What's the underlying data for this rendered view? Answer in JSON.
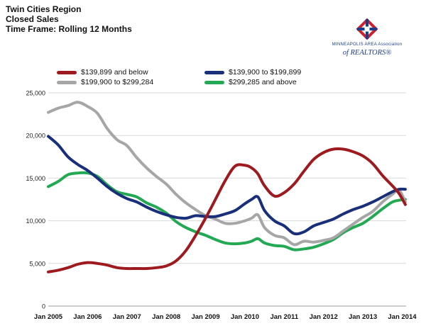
{
  "header": {
    "title_lines": [
      "Twin Cities Region",
      "Closed Sales",
      "Time Frame: Rolling 12 Months"
    ]
  },
  "logo": {
    "line1": "MINNEAPOLIS AREA Association",
    "line2": "of REALTORS®",
    "colors": {
      "red": "#d11f2e",
      "blue": "#1a3d8f"
    }
  },
  "chart_data": {
    "type": "line",
    "title": "",
    "xlabel": "",
    "ylabel": "",
    "ylim": [
      0,
      25000
    ],
    "yticks": [
      0,
      5000,
      10000,
      15000,
      20000,
      25000
    ],
    "ytick_labels": [
      "0",
      "5,000",
      "10,000",
      "15,000",
      "20,000",
      "25,000"
    ],
    "xlim": [
      2005.0,
      2014.1
    ],
    "xticks": [
      2005,
      2006,
      2007,
      2008,
      2009,
      2010,
      2011,
      2012,
      2013,
      2014
    ],
    "xtick_labels": [
      "Jan 2005",
      "Jan 2006",
      "Jan 2007",
      "Jan 2008",
      "Jan 2009",
      "Jan 2010",
      "Jan 2011",
      "Jan 2012",
      "Jan 2013",
      "Jan 2014"
    ],
    "grid": "horizontal",
    "series": [
      {
        "name": "$139,899 and below",
        "color": "#9e1a1f",
        "x": [
          2005.0,
          2005.25,
          2005.5,
          2005.75,
          2006.0,
          2006.25,
          2006.5,
          2006.75,
          2007.0,
          2007.25,
          2007.5,
          2007.75,
          2008.0,
          2008.25,
          2008.5,
          2008.75,
          2009.0,
          2009.25,
          2009.5,
          2009.75,
          2010.0,
          2010.17,
          2010.33,
          2010.5,
          2010.75,
          2011.0,
          2011.25,
          2011.5,
          2011.75,
          2012.0,
          2012.25,
          2012.5,
          2012.75,
          2013.0,
          2013.25,
          2013.5,
          2013.75,
          2013.92,
          2014.08
        ],
        "values": [
          4000,
          4200,
          4500,
          4900,
          5100,
          5000,
          4800,
          4500,
          4400,
          4400,
          4400,
          4500,
          4700,
          5300,
          6500,
          8300,
          10300,
          12500,
          14700,
          16400,
          16500,
          16200,
          15500,
          14100,
          12900,
          13300,
          14300,
          15800,
          17200,
          18000,
          18400,
          18400,
          18100,
          17600,
          16700,
          15300,
          14100,
          13200,
          11900
        ]
      },
      {
        "name": "$139,900 to $199,899",
        "color": "#1a2f7a",
        "x": [
          2005.0,
          2005.25,
          2005.5,
          2005.75,
          2006.0,
          2006.25,
          2006.5,
          2006.75,
          2007.0,
          2007.25,
          2007.5,
          2007.75,
          2008.0,
          2008.25,
          2008.5,
          2008.75,
          2009.0,
          2009.25,
          2009.5,
          2009.75,
          2010.0,
          2010.17,
          2010.33,
          2010.5,
          2010.75,
          2011.0,
          2011.25,
          2011.5,
          2011.75,
          2012.0,
          2012.25,
          2012.5,
          2012.75,
          2013.0,
          2013.25,
          2013.5,
          2013.75,
          2013.92,
          2014.08
        ],
        "values": [
          19900,
          18900,
          17500,
          16600,
          15900,
          15000,
          14000,
          13200,
          12600,
          12200,
          11600,
          11100,
          10700,
          10400,
          10300,
          10600,
          10500,
          10500,
          10800,
          11200,
          12000,
          12500,
          12800,
          11200,
          10000,
          9400,
          8500,
          8700,
          9400,
          9800,
          10200,
          10800,
          11300,
          11700,
          12200,
          12800,
          13400,
          13700,
          13700
        ]
      },
      {
        "name": "$199,900 to $299,284",
        "color": "#a6a6a6",
        "x": [
          2005.0,
          2005.25,
          2005.5,
          2005.75,
          2006.0,
          2006.25,
          2006.5,
          2006.75,
          2007.0,
          2007.25,
          2007.5,
          2007.75,
          2008.0,
          2008.25,
          2008.5,
          2008.75,
          2009.0,
          2009.25,
          2009.5,
          2009.75,
          2010.0,
          2010.17,
          2010.33,
          2010.5,
          2010.75,
          2011.0,
          2011.25,
          2011.5,
          2011.75,
          2012.0,
          2012.25,
          2012.5,
          2012.75,
          2013.0,
          2013.25,
          2013.5,
          2013.75,
          2013.92,
          2014.08
        ],
        "values": [
          22700,
          23200,
          23500,
          23900,
          23400,
          22600,
          20800,
          19500,
          18800,
          17400,
          16200,
          15200,
          14300,
          13100,
          12100,
          11300,
          10600,
          10200,
          9700,
          9700,
          10000,
          10300,
          10700,
          9200,
          8300,
          8000,
          7200,
          7600,
          7500,
          7700,
          8000,
          8800,
          9600,
          10400,
          11100,
          12200,
          13100,
          13600,
          12200
        ]
      },
      {
        "name": "$299,285 and above",
        "color": "#23a854",
        "x": [
          2005.0,
          2005.25,
          2005.5,
          2005.75,
          2006.0,
          2006.25,
          2006.5,
          2006.75,
          2007.0,
          2007.25,
          2007.5,
          2007.75,
          2008.0,
          2008.25,
          2008.5,
          2008.75,
          2009.0,
          2009.25,
          2009.5,
          2009.75,
          2010.0,
          2010.17,
          2010.33,
          2010.5,
          2010.75,
          2011.0,
          2011.25,
          2011.5,
          2011.75,
          2012.0,
          2012.25,
          2012.5,
          2012.75,
          2013.0,
          2013.25,
          2013.5,
          2013.75,
          2013.92,
          2014.08
        ],
        "values": [
          14000,
          14600,
          15400,
          15600,
          15600,
          15200,
          14200,
          13400,
          13100,
          12800,
          12100,
          11600,
          10900,
          9900,
          9200,
          8700,
          8300,
          7800,
          7400,
          7300,
          7400,
          7600,
          7900,
          7400,
          7100,
          7000,
          6600,
          6700,
          6900,
          7300,
          7800,
          8600,
          9200,
          9700,
          10500,
          11400,
          12200,
          12400,
          12500
        ]
      }
    ]
  }
}
